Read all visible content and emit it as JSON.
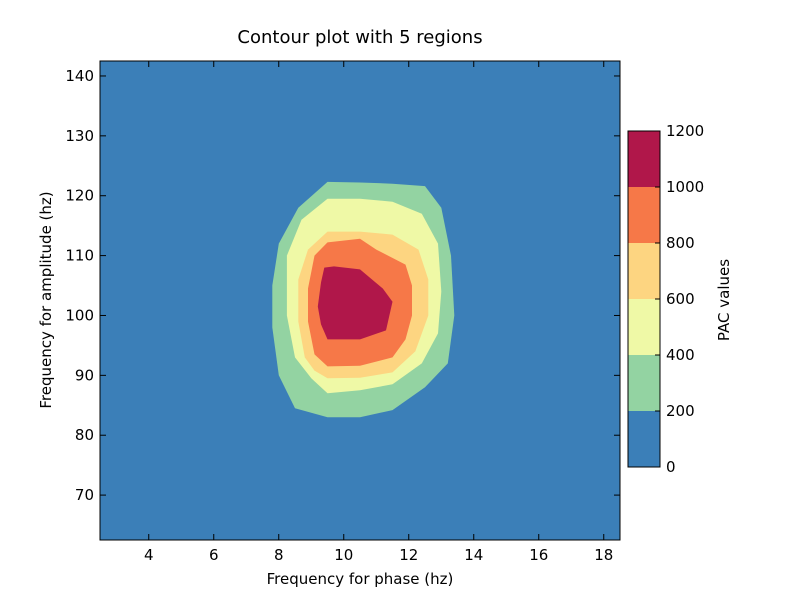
{
  "chart_data": {
    "type": "contour",
    "title": "Contour plot with 5 regions",
    "xlabel": "Frequency for phase (hz)",
    "ylabel": "Frequency for amplitude (hz)",
    "xlim": [
      2.5,
      18.5
    ],
    "ylim": [
      62.5,
      142.5
    ],
    "xticks": [
      4,
      6,
      8,
      10,
      12,
      14,
      16,
      18
    ],
    "yticks": [
      70,
      80,
      90,
      100,
      110,
      120,
      130,
      140
    ],
    "colorbar": {
      "label": "PAC values",
      "ticks": [
        0,
        200,
        400,
        600,
        800,
        1000,
        1200
      ],
      "position": "right"
    },
    "levels": [
      {
        "min": 0,
        "max": 200,
        "color": "#3b7fb8"
      },
      {
        "min": 200,
        "max": 400,
        "color": "#93d3a2"
      },
      {
        "min": 400,
        "max": 600,
        "color": "#eff9a6"
      },
      {
        "min": 600,
        "max": 800,
        "color": "#fdd581"
      },
      {
        "min": 800,
        "max": 1000,
        "color": "#f67848"
      },
      {
        "min": 1000,
        "max": 1200,
        "color": "#b0174a"
      }
    ],
    "regions": [
      {
        "level_min": 200,
        "points": [
          [
            8.5,
            84.5
          ],
          [
            9.5,
            83
          ],
          [
            10.5,
            83
          ],
          [
            11.5,
            84.2
          ],
          [
            12.5,
            88
          ],
          [
            13.2,
            92
          ],
          [
            13.4,
            100
          ],
          [
            13.3,
            110
          ],
          [
            13.0,
            118
          ],
          [
            12.5,
            121.6
          ],
          [
            11.5,
            122
          ],
          [
            10.5,
            122.2
          ],
          [
            9.5,
            122.3
          ],
          [
            8.6,
            118
          ],
          [
            8.0,
            112
          ],
          [
            7.8,
            105
          ],
          [
            7.8,
            98
          ],
          [
            8.0,
            90
          ]
        ]
      },
      {
        "level_min": 400,
        "points": [
          [
            9.5,
            87
          ],
          [
            10.5,
            87.5
          ],
          [
            11.5,
            88.5
          ],
          [
            12.4,
            92
          ],
          [
            12.9,
            97
          ],
          [
            13.0,
            104
          ],
          [
            12.9,
            112
          ],
          [
            12.4,
            117
          ],
          [
            11.5,
            119
          ],
          [
            10.5,
            119.5
          ],
          [
            9.5,
            119.5
          ],
          [
            8.7,
            116
          ],
          [
            8.25,
            110
          ],
          [
            8.25,
            100
          ],
          [
            8.5,
            93
          ],
          [
            9.0,
            89.5
          ]
        ]
      },
      {
        "level_min": 600,
        "points": [
          [
            9.5,
            89.5
          ],
          [
            10.5,
            89.6
          ],
          [
            11.5,
            90.5
          ],
          [
            12.2,
            94
          ],
          [
            12.6,
            100
          ],
          [
            12.6,
            106
          ],
          [
            12.3,
            111
          ],
          [
            11.5,
            113.5
          ],
          [
            10.5,
            114
          ],
          [
            9.5,
            114
          ],
          [
            8.9,
            111
          ],
          [
            8.6,
            106
          ],
          [
            8.6,
            99
          ],
          [
            8.8,
            93
          ],
          [
            9.1,
            90.8
          ]
        ]
      },
      {
        "level_min": 800,
        "points": [
          [
            9.5,
            91.5
          ],
          [
            10.5,
            91.6
          ],
          [
            11.5,
            93
          ],
          [
            11.9,
            96
          ],
          [
            12.1,
            100
          ],
          [
            12.1,
            105
          ],
          [
            11.9,
            108.5
          ],
          [
            11.0,
            111
          ],
          [
            10.5,
            112.8
          ],
          [
            9.5,
            112.2
          ],
          [
            9.1,
            110
          ],
          [
            8.9,
            104.5
          ],
          [
            8.9,
            99
          ],
          [
            9.1,
            93.5
          ]
        ]
      },
      {
        "level_min": 1000,
        "points": [
          [
            9.5,
            96
          ],
          [
            10.5,
            96
          ],
          [
            11.3,
            97.5
          ],
          [
            11.5,
            102.3
          ],
          [
            11.2,
            104.5
          ],
          [
            10.5,
            107.7
          ],
          [
            9.7,
            108.2
          ],
          [
            9.4,
            108
          ],
          [
            9.3,
            105.5
          ],
          [
            9.2,
            101.5
          ],
          [
            9.3,
            98.5
          ]
        ]
      }
    ]
  }
}
